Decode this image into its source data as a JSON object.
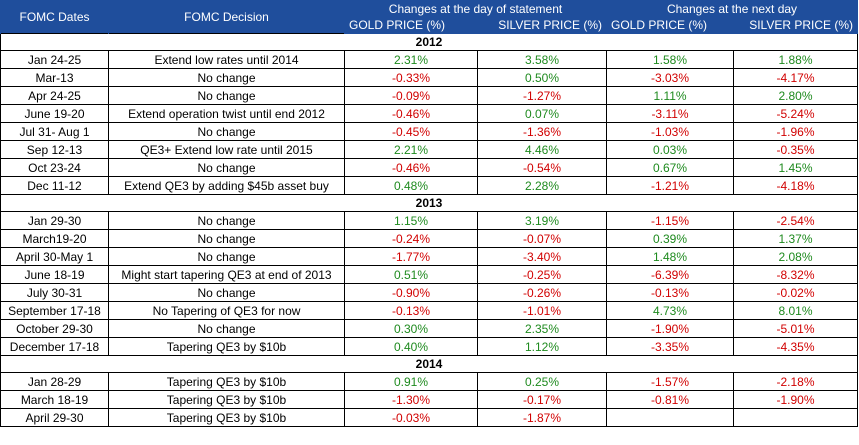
{
  "headers": {
    "dates": "FOMC Dates",
    "decision": "FOMC Decision",
    "group_statement": "Changes at the day of statement",
    "group_next": "Changes at the next day",
    "gold": "GOLD PRICE (%)",
    "silver": "SILVER  PRICE (%)"
  },
  "sections": [
    {
      "year": "2012",
      "rows": [
        {
          "date": "Jan 24-25",
          "decision": "Extend low rates until 2014",
          "gold_day": "2.31%",
          "silver_day": "3.58%",
          "gold_next": "1.58%",
          "silver_next": "1.88%"
        },
        {
          "date": "Mar-13",
          "decision": "No change",
          "gold_day": "-0.33%",
          "silver_day": "0.50%",
          "gold_next": "-3.03%",
          "silver_next": "-4.17%"
        },
        {
          "date": "Apr 24-25",
          "decision": "No change",
          "gold_day": "-0.09%",
          "silver_day": "-1.27%",
          "gold_next": "1.11%",
          "silver_next": "2.80%"
        },
        {
          "date": "June 19-20",
          "decision": "Extend operation twist until end 2012",
          "gold_day": "-0.46%",
          "silver_day": "0.07%",
          "gold_next": "-3.11%",
          "silver_next": "-5.24%"
        },
        {
          "date": "Jul 31- Aug 1",
          "decision": "No change",
          "gold_day": "-0.45%",
          "silver_day": "-1.36%",
          "gold_next": "-1.03%",
          "silver_next": "-1.96%"
        },
        {
          "date": "Sep 12-13",
          "decision": "QE3+ Extend low rate until 2015",
          "gold_day": "2.21%",
          "silver_day": "4.46%",
          "gold_next": "0.03%",
          "silver_next": "-0.35%"
        },
        {
          "date": "Oct  23-24",
          "decision": "No change",
          "gold_day": "-0.46%",
          "silver_day": "-0.54%",
          "gold_next": "0.67%",
          "silver_next": "1.45%"
        },
        {
          "date": "Dec 11-12",
          "decision": "Extend QE3 by adding $45b asset buy",
          "gold_day": "0.48%",
          "silver_day": "2.28%",
          "gold_next": "-1.21%",
          "silver_next": "-4.18%"
        }
      ]
    },
    {
      "year": "2013",
      "rows": [
        {
          "date": "Jan 29-30",
          "decision": "No change",
          "gold_day": "1.15%",
          "silver_day": "3.19%",
          "gold_next": "-1.15%",
          "silver_next": "-2.54%"
        },
        {
          "date": "March19-20",
          "decision": "No change",
          "gold_day": "-0.24%",
          "silver_day": "-0.07%",
          "gold_next": "0.39%",
          "silver_next": "1.37%"
        },
        {
          "date": "April 30-May 1",
          "decision": "No change",
          "gold_day": "-1.77%",
          "silver_day": "-3.40%",
          "gold_next": "1.48%",
          "silver_next": "2.08%"
        },
        {
          "date": "June 18-19",
          "decision": "Might start tapering QE3 at end of 2013",
          "gold_day": "0.51%",
          "silver_day": "-0.25%",
          "gold_next": "-6.39%",
          "silver_next": "-8.32%"
        },
        {
          "date": "July 30-31",
          "decision": "No change",
          "gold_day": "-0.90%",
          "silver_day": "-0.26%",
          "gold_next": "-0.13%",
          "silver_next": "-0.02%"
        },
        {
          "date": "September  17-18",
          "decision": "No Tapering of QE3 for now",
          "gold_day": "-0.13%",
          "silver_day": "-1.01%",
          "gold_next": "4.73%",
          "silver_next": "8.01%"
        },
        {
          "date": "October 29-30",
          "decision": "No change",
          "gold_day": "0.30%",
          "silver_day": "2.35%",
          "gold_next": "-1.90%",
          "silver_next": "-5.01%"
        },
        {
          "date": "December 17-18",
          "decision": "Tapering QE3 by $10b",
          "gold_day": "0.40%",
          "silver_day": "1.12%",
          "gold_next": "-3.35%",
          "silver_next": "-4.35%"
        }
      ]
    },
    {
      "year": "2014",
      "rows": [
        {
          "date": "Jan 28-29",
          "decision": "Tapering QE3 by $10b",
          "gold_day": "0.91%",
          "silver_day": "0.25%",
          "gold_next": "-1.57%",
          "silver_next": "-2.18%"
        },
        {
          "date": "March 18-19",
          "decision": "Tapering QE3 by $10b",
          "gold_day": "-1.30%",
          "silver_day": "-0.17%",
          "gold_next": "-0.81%",
          "silver_next": "-1.90%"
        },
        {
          "date": "April 29-30",
          "decision": "Tapering QE3 by $10b",
          "gold_day": "-0.03%",
          "silver_day": "-1.87%",
          "gold_next": "",
          "silver_next": ""
        }
      ]
    }
  ],
  "colors": {
    "header_bg": "#1f4e9c",
    "header_text": "#ffffff",
    "positive": "#1e8a1e",
    "negative": "#d10000"
  }
}
